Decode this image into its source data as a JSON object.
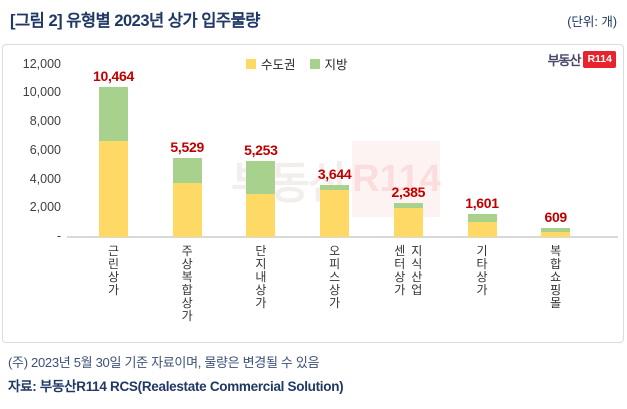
{
  "header": {
    "title": "[그림 2] 유형별 2023년 상가 입주물량",
    "unit_label": "(단위: 개)"
  },
  "logo": {
    "prefix": "부동산",
    "mark": "R114"
  },
  "watermark": {
    "prefix": "부동산",
    "mark": "R114"
  },
  "legend": [
    {
      "label": "수도권",
      "color": "#FFD966"
    },
    {
      "label": "지방",
      "color": "#A9D18E"
    }
  ],
  "chart_data": {
    "type": "bar",
    "stacked": true,
    "title": "[그림 2] 유형별 2023년 상가 입주물량",
    "unit": "개",
    "categories": [
      "근린상가",
      "주상복합상가",
      "단지내상가",
      "오피스상가",
      "지식산업센터상가",
      "기타상가",
      "복합쇼핑몰"
    ],
    "category_display_columns": [
      [
        "근린상가"
      ],
      [
        "주상복합상가"
      ],
      [
        "단지내상가"
      ],
      [
        "오피스상가"
      ],
      [
        "센터상가",
        "지식산업"
      ],
      [
        "기타상가"
      ],
      [
        "복합쇼핑몰"
      ]
    ],
    "totals": [
      10464,
      5529,
      5253,
      3644,
      2385,
      1601,
      609
    ],
    "total_labels": [
      "10,464",
      "5,529",
      "5,253",
      "3,644",
      "2,385",
      "1,601",
      "609"
    ],
    "series": [
      {
        "name": "수도권",
        "color": "#FFD966",
        "values": [
          6650,
          3740,
          2970,
          3270,
          2000,
          1010,
          330
        ]
      },
      {
        "name": "지방",
        "color": "#A9D18E",
        "values": [
          3814,
          1789,
          2283,
          374,
          385,
          591,
          279
        ]
      }
    ],
    "y_axis": {
      "ticks": [
        "12,000",
        "10,000",
        "8,000",
        "6,000",
        "4,000",
        "2,000",
        "-"
      ],
      "tick_values": [
        12000,
        10000,
        8000,
        6000,
        4000,
        2000,
        0
      ],
      "max": 12000
    },
    "value_label_color": "#C00000",
    "legend_position": "top-center",
    "grid": false
  },
  "footnote": {
    "note": "(주) 2023년 5월 30일 기준 자료이며, 물량은 변경될 수 있음",
    "source": "자료: 부동산R114 RCS(Realestate Commercial Solution)"
  }
}
